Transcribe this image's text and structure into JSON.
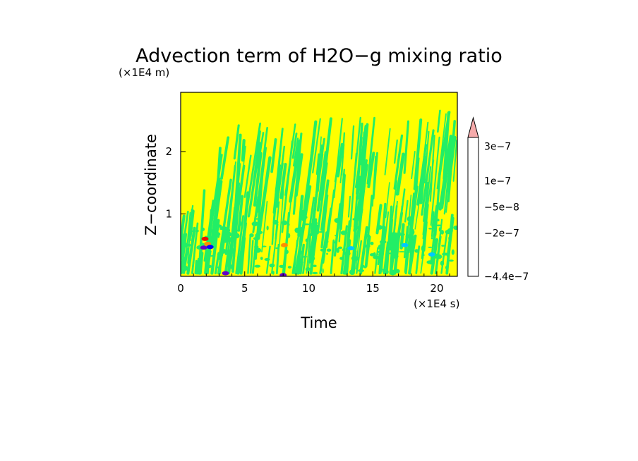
{
  "chart_data": {
    "type": "heatmap",
    "title": "Advection term of H2O−g mixing ratio",
    "xlabel": "Time",
    "ylabel": "Z−coordinate",
    "x_unit": "(×1E4 s)",
    "y_unit": "(×1E4 m)",
    "xlim": [
      0,
      21.6
    ],
    "ylim": [
      0,
      2.95
    ],
    "x_ticks": [
      "0",
      "5",
      "10",
      "15",
      "20"
    ],
    "x_tick_values": [
      0,
      5,
      10,
      15,
      20
    ],
    "y_ticks": [
      "1",
      "2"
    ],
    "y_tick_values": [
      1,
      2
    ],
    "colorbar": {
      "labels": [
        "3e−7",
        "1e−7",
        "−5e−8",
        "−2e−7",
        "−4.4e−7"
      ],
      "label_levels": [
        3e-07,
        1e-07,
        -5e-08,
        -2e-07,
        -4.4e-07
      ],
      "levels": [
        -4.4e-07,
        -4e-07,
        -3.5e-07,
        -3e-07,
        -2.5e-07,
        -2e-07,
        -1.5e-07,
        -1e-07,
        -5e-08,
        0,
        5e-08,
        1e-07,
        1.5e-07,
        2e-07,
        2.5e-07,
        3e-07
      ],
      "colors": [
        "#e600c8",
        "#c800b4",
        "#a000b4",
        "#7800b4",
        "#6400c8",
        "#0000aa",
        "#0000ff",
        "#00c8ff",
        "#22ee66",
        "#ffff00",
        "#ffc800",
        "#ff8c00",
        "#ff4600",
        "#ee1100",
        "#f08080",
        "#f5aaaa"
      ],
      "extend": "max"
    },
    "background_value": 0,
    "field_description_levels": {
      "upper_atmosphere": 0,
      "streaks": -5e-08
    }
  }
}
